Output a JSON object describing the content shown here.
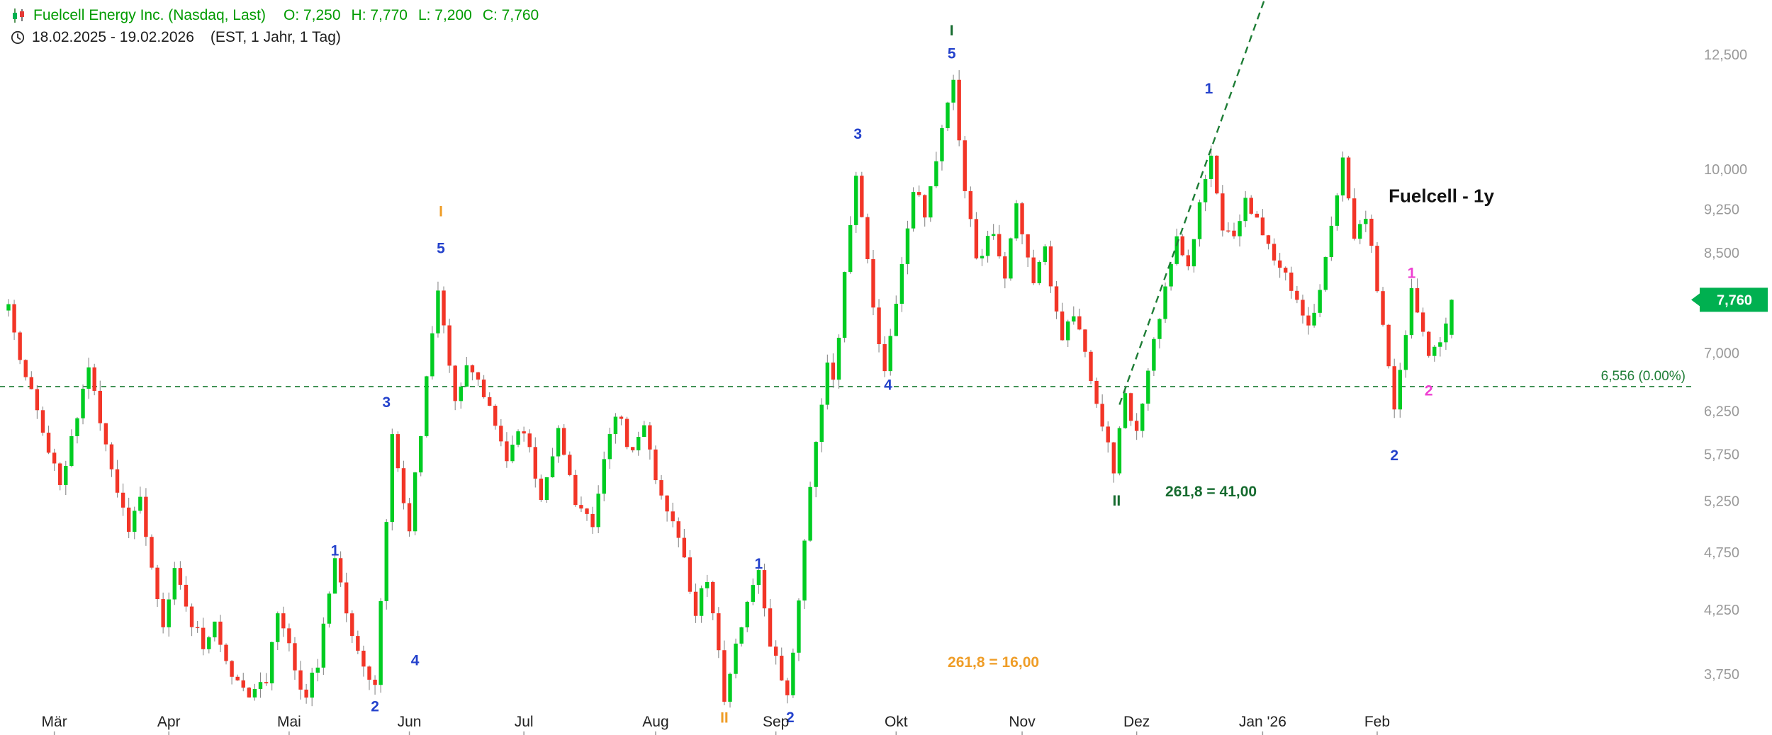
{
  "header": {
    "instrument": "Fuelcell Energy Inc. (Nasdaq, Last)",
    "ohlc_parts": [
      "O: 7,250",
      "H: 7,770",
      "L: 7,200",
      "C: 7,760"
    ],
    "date_range": "18.02.2025 - 19.02.2026",
    "timeframe": "(EST, 1 Jahr, 1 Tag)"
  },
  "colors": {
    "up": "#00cc22",
    "down": "#f23527",
    "wick": "#8a8a8a",
    "header_green": "#009b00",
    "axis_text": "#9a9a9a",
    "month_text": "#222222",
    "dashed_green": "#1e7d36",
    "price_tag_bg": "#00b050",
    "price_tag_text": "#ffffff",
    "wave_blue": "#2442cc",
    "wave_orange": "#ef9d27",
    "wave_dark_green": "#166b2f",
    "wave_pink": "#ee3fd1",
    "title_black": "#111111"
  },
  "chart_data": {
    "type": "candlestick",
    "title": "Fuelcell - 1y",
    "instrument": "Fuelcell Energy Inc. (Nasdaq, Last)",
    "period": "18.02.2025 - 19.02.2026",
    "interval": "1 Tag",
    "timezone": "EST",
    "scale": "log",
    "grid": false,
    "bars": 253,
    "last_ohlc": {
      "open": 7250,
      "high": 7770,
      "low": 7200,
      "close": 7760
    },
    "current_price_label": "7,760",
    "y_ticks": [
      12500,
      10000,
      9250,
      8500,
      7000,
      6250,
      5750,
      5250,
      4750,
      4250,
      3750
    ],
    "y_range_approx": [
      3450,
      13200
    ],
    "reference_line": {
      "price": 6556,
      "label": "6,556 (0.00%)"
    },
    "months": [
      {
        "label": "Mär",
        "bar": 8
      },
      {
        "label": "Apr",
        "bar": 28
      },
      {
        "label": "Mai",
        "bar": 49
      },
      {
        "label": "Jun",
        "bar": 70
      },
      {
        "label": "Jul",
        "bar": 90
      },
      {
        "label": "Aug",
        "bar": 113
      },
      {
        "label": "Sep",
        "bar": 134
      },
      {
        "label": "Okt",
        "bar": 155
      },
      {
        "label": "Nov",
        "bar": 177
      },
      {
        "label": "Dez",
        "bar": 197
      },
      {
        "label": "Jan '26",
        "bar": 219
      },
      {
        "label": "Feb",
        "bar": 239
      }
    ],
    "price_path": [
      [
        0,
        7600
      ],
      [
        2,
        7000
      ],
      [
        5,
        6250
      ],
      [
        9,
        5450
      ],
      [
        12,
        6200
      ],
      [
        14,
        6750
      ],
      [
        19,
        5400
      ],
      [
        21,
        5000
      ],
      [
        23,
        5250
      ],
      [
        25,
        4650
      ],
      [
        27,
        4150
      ],
      [
        29,
        4550
      ],
      [
        32,
        4150
      ],
      [
        34,
        3980
      ],
      [
        36,
        4150
      ],
      [
        39,
        3750
      ],
      [
        42,
        3560
      ],
      [
        45,
        3720
      ],
      [
        47,
        4250
      ],
      [
        50,
        3800
      ],
      [
        52,
        3580
      ],
      [
        54,
        3850
      ],
      [
        57,
        4650
      ],
      [
        60,
        4050
      ],
      [
        64,
        3650
      ],
      [
        67,
        5950
      ],
      [
        70,
        5000
      ],
      [
        75,
        7950
      ],
      [
        78,
        6400
      ],
      [
        80,
        6900
      ],
      [
        84,
        6300
      ],
      [
        87,
        5700
      ],
      [
        90,
        6050
      ],
      [
        93,
        5300
      ],
      [
        96,
        6050
      ],
      [
        99,
        5250
      ],
      [
        102,
        5050
      ],
      [
        106,
        6250
      ],
      [
        109,
        5750
      ],
      [
        111,
        6050
      ],
      [
        114,
        5250
      ],
      [
        117,
        4850
      ],
      [
        120,
        4250
      ],
      [
        122,
        4500
      ],
      [
        125,
        3600
      ],
      [
        128,
        4150
      ],
      [
        131,
        4600
      ],
      [
        133,
        4000
      ],
      [
        136,
        3620
      ],
      [
        138,
        4300
      ],
      [
        140,
        5400
      ],
      [
        143,
        6900
      ],
      [
        144,
        6600
      ],
      [
        148,
        9900
      ],
      [
        151,
        7600
      ],
      [
        153,
        6850
      ],
      [
        156,
        8300
      ],
      [
        158,
        9700
      ],
      [
        160,
        9200
      ],
      [
        165,
        11900
      ],
      [
        167,
        9600
      ],
      [
        169,
        8400
      ],
      [
        172,
        8900
      ],
      [
        174,
        8200
      ],
      [
        176,
        9300
      ],
      [
        179,
        8000
      ],
      [
        181,
        8500
      ],
      [
        184,
        7100
      ],
      [
        186,
        7600
      ],
      [
        190,
        6300
      ],
      [
        193,
        5600
      ],
      [
        195,
        6400
      ],
      [
        197,
        6000
      ],
      [
        200,
        7200
      ],
      [
        204,
        8700
      ],
      [
        206,
        8300
      ],
      [
        210,
        10350
      ],
      [
        212,
        9000
      ],
      [
        214,
        8700
      ],
      [
        216,
        9400
      ],
      [
        219,
        8800
      ],
      [
        222,
        8300
      ],
      [
        225,
        7700
      ],
      [
        227,
        7450
      ],
      [
        229,
        7900
      ],
      [
        233,
        10100
      ],
      [
        235,
        8800
      ],
      [
        237,
        9200
      ],
      [
        240,
        7400
      ],
      [
        242,
        6250
      ],
      [
        245,
        7850
      ],
      [
        248,
        6950
      ],
      [
        250,
        7150
      ],
      [
        252,
        7760
      ]
    ],
    "trendline": {
      "from": [
        194,
        6330
      ],
      "to": [
        220,
        14200
      ],
      "style": "dashed"
    },
    "annotations": [
      {
        "text": "1",
        "bar": 57,
        "price": 4770,
        "color": "wave_blue"
      },
      {
        "text": "2",
        "bar": 64,
        "price": 3525,
        "color": "wave_blue"
      },
      {
        "text": "3",
        "bar": 66,
        "price": 6365,
        "color": "wave_blue"
      },
      {
        "text": "4",
        "bar": 71,
        "price": 3855,
        "color": "wave_blue"
      },
      {
        "text": "5",
        "bar": 75.5,
        "price": 8580,
        "color": "wave_blue"
      },
      {
        "text": "I",
        "bar": 75.5,
        "price": 9220,
        "color": "wave_orange"
      },
      {
        "text": "II",
        "bar": 125,
        "price": 3447,
        "color": "wave_orange"
      },
      {
        "text": "1",
        "bar": 131,
        "price": 4650,
        "color": "wave_blue"
      },
      {
        "text": "2",
        "bar": 136.5,
        "price": 3450,
        "color": "wave_blue"
      },
      {
        "text": "3",
        "bar": 148.3,
        "price": 10720,
        "color": "wave_blue"
      },
      {
        "text": "4",
        "bar": 153.6,
        "price": 6580,
        "color": "wave_blue"
      },
      {
        "text": "5",
        "bar": 164.7,
        "price": 12530,
        "color": "wave_blue"
      },
      {
        "text": "I",
        "bar": 164.7,
        "price": 13100,
        "color": "wave_dark_green"
      },
      {
        "text": "261,8 = 16,00",
        "bar": 164,
        "price": 3840,
        "color": "wave_orange",
        "anchor": "start"
      },
      {
        "text": "II",
        "bar": 193.5,
        "price": 5255,
        "color": "wave_dark_green"
      },
      {
        "text": "261,8 = 41,00",
        "bar": 202,
        "price": 5350,
        "color": "wave_dark_green",
        "anchor": "start"
      },
      {
        "text": "1",
        "bar": 209.6,
        "price": 11700,
        "color": "wave_blue"
      },
      {
        "text": "Fuelcell - 1y",
        "bar": 241,
        "price": 9500,
        "color": "title_black",
        "anchor": "start",
        "size": 26
      },
      {
        "text": "2",
        "bar": 242,
        "price": 5740,
        "color": "wave_blue"
      },
      {
        "text": "1",
        "bar": 245,
        "price": 8180,
        "color": "wave_pink"
      },
      {
        "text": "2",
        "bar": 248,
        "price": 6510,
        "color": "wave_pink"
      }
    ]
  }
}
